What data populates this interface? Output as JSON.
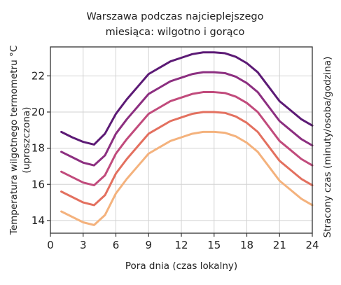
{
  "chart_data": {
    "type": "line",
    "title_lines": [
      "Warszawa podczas najcieplejszego",
      "miesiąca: wilgotno i gorąco"
    ],
    "xlabel": "Pora dnia (czas lokalny)",
    "ylabel_lines": [
      "Temperatura wilgotnego termometru °C",
      "(uproszczona)"
    ],
    "ylabel_right": "Stracony czas (minuty/osoba/godzina)",
    "xlim": [
      0,
      24
    ],
    "ylim": [
      13.3,
      23.6
    ],
    "xticks": [
      0,
      3,
      6,
      9,
      12,
      15,
      18,
      21,
      24
    ],
    "yticks": [
      14,
      16,
      18,
      20,
      22
    ],
    "grid": true,
    "x": [
      1,
      2,
      3,
      4,
      5,
      6,
      7,
      8,
      9,
      10,
      11,
      12,
      13,
      14,
      15,
      16,
      17,
      18,
      19,
      20,
      21,
      22,
      23,
      24
    ],
    "series": [
      {
        "color": "#5c1a75",
        "values": [
          18.9,
          18.6,
          18.35,
          18.2,
          18.8,
          19.9,
          20.7,
          21.4,
          22.1,
          22.45,
          22.8,
          23.0,
          23.2,
          23.3,
          23.3,
          23.25,
          23.05,
          22.7,
          22.2,
          21.4,
          20.6,
          20.1,
          19.6,
          19.25
        ]
      },
      {
        "color": "#8c2f80",
        "values": [
          17.8,
          17.5,
          17.2,
          17.05,
          17.6,
          18.8,
          19.6,
          20.3,
          21.0,
          21.35,
          21.7,
          21.9,
          22.1,
          22.2,
          22.2,
          22.15,
          21.95,
          21.6,
          21.1,
          20.3,
          19.5,
          19.0,
          18.5,
          18.15
        ]
      },
      {
        "color": "#c14b7c",
        "values": [
          16.7,
          16.4,
          16.1,
          15.95,
          16.5,
          17.7,
          18.5,
          19.2,
          19.9,
          20.25,
          20.6,
          20.8,
          21.0,
          21.1,
          21.1,
          21.05,
          20.85,
          20.5,
          20.0,
          19.2,
          18.4,
          17.9,
          17.4,
          17.05
        ]
      },
      {
        "color": "#e3705f",
        "values": [
          15.6,
          15.3,
          15.0,
          14.85,
          15.4,
          16.6,
          17.4,
          18.1,
          18.8,
          19.15,
          19.5,
          19.7,
          19.9,
          20.0,
          20.0,
          19.95,
          19.75,
          19.4,
          18.9,
          18.1,
          17.3,
          16.8,
          16.3,
          15.95
        ]
      },
      {
        "color": "#f4b27d",
        "values": [
          14.5,
          14.2,
          13.9,
          13.75,
          14.3,
          15.5,
          16.3,
          17.0,
          17.7,
          18.05,
          18.4,
          18.6,
          18.8,
          18.9,
          18.9,
          18.85,
          18.65,
          18.3,
          17.8,
          17.0,
          16.2,
          15.7,
          15.2,
          14.85
        ]
      }
    ]
  }
}
